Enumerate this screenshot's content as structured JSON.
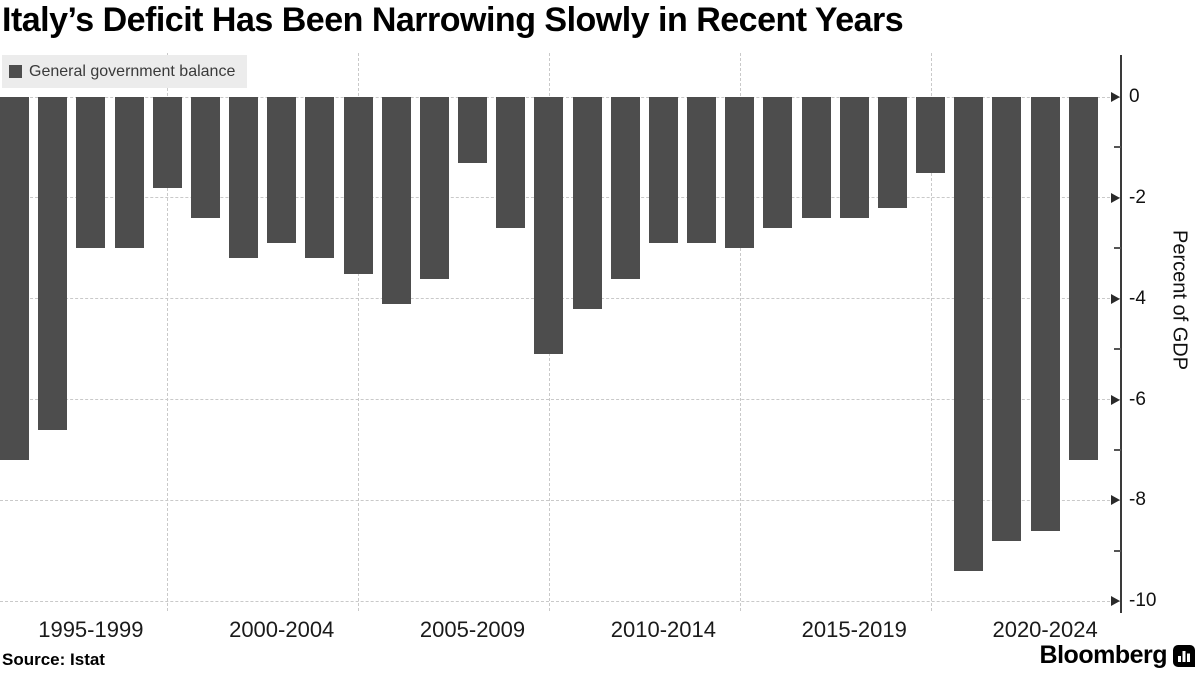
{
  "title": "Italy’s Deficit Has Been Narrowing Slowly in Recent Years",
  "legend": {
    "label": "General government balance",
    "swatch_icon": "filled-square-icon",
    "swatch_color": "#4d4d4d",
    "background_color": "#ececec"
  },
  "source_note": "Source: Istat",
  "branding": {
    "name": "Bloomberg",
    "logo_icon": "bloomberg-bar-chart-bubble-icon"
  },
  "chart_data": {
    "type": "bar",
    "title": "Italy’s Deficit Has Been Narrowing Slowly in Recent Years",
    "series_name": "General government balance",
    "x": [
      1995,
      1996,
      1997,
      1998,
      1999,
      2000,
      2001,
      2002,
      2003,
      2004,
      2005,
      2006,
      2007,
      2008,
      2009,
      2010,
      2011,
      2012,
      2013,
      2014,
      2015,
      2016,
      2017,
      2018,
      2019,
      2020,
      2021,
      2022,
      2023
    ],
    "values": [
      -7.2,
      -6.6,
      -3.0,
      -3.0,
      -1.8,
      -2.4,
      -3.2,
      -2.9,
      -3.2,
      -3.5,
      -4.1,
      -3.6,
      -1.3,
      -2.6,
      -5.1,
      -4.2,
      -3.6,
      -2.9,
      -2.9,
      -3.0,
      -2.6,
      -2.4,
      -2.4,
      -2.2,
      -1.5,
      -9.4,
      -8.8,
      -8.6,
      -7.2
    ],
    "xlabel": "",
    "ylabel": "Percent of GDP",
    "ylim": [
      -10,
      0
    ],
    "y_ticks": [
      0,
      -2,
      -4,
      -6,
      -8,
      -10
    ],
    "y_tick_labels": [
      "0",
      "-2",
      "-4",
      "-6",
      "-8",
      "-10"
    ],
    "x_group_labels": [
      "1995-1999",
      "2000-2004",
      "2005-2009",
      "2010-2014",
      "2015-2019",
      "2020-2024"
    ],
    "years_per_group": 5,
    "grid": "dashed",
    "gridlines": "horizontal-and-vertical",
    "legend_position": "top-left",
    "y_axis_side": "right",
    "bar_color": "#4d4d4d",
    "background_color": "#ffffff"
  }
}
